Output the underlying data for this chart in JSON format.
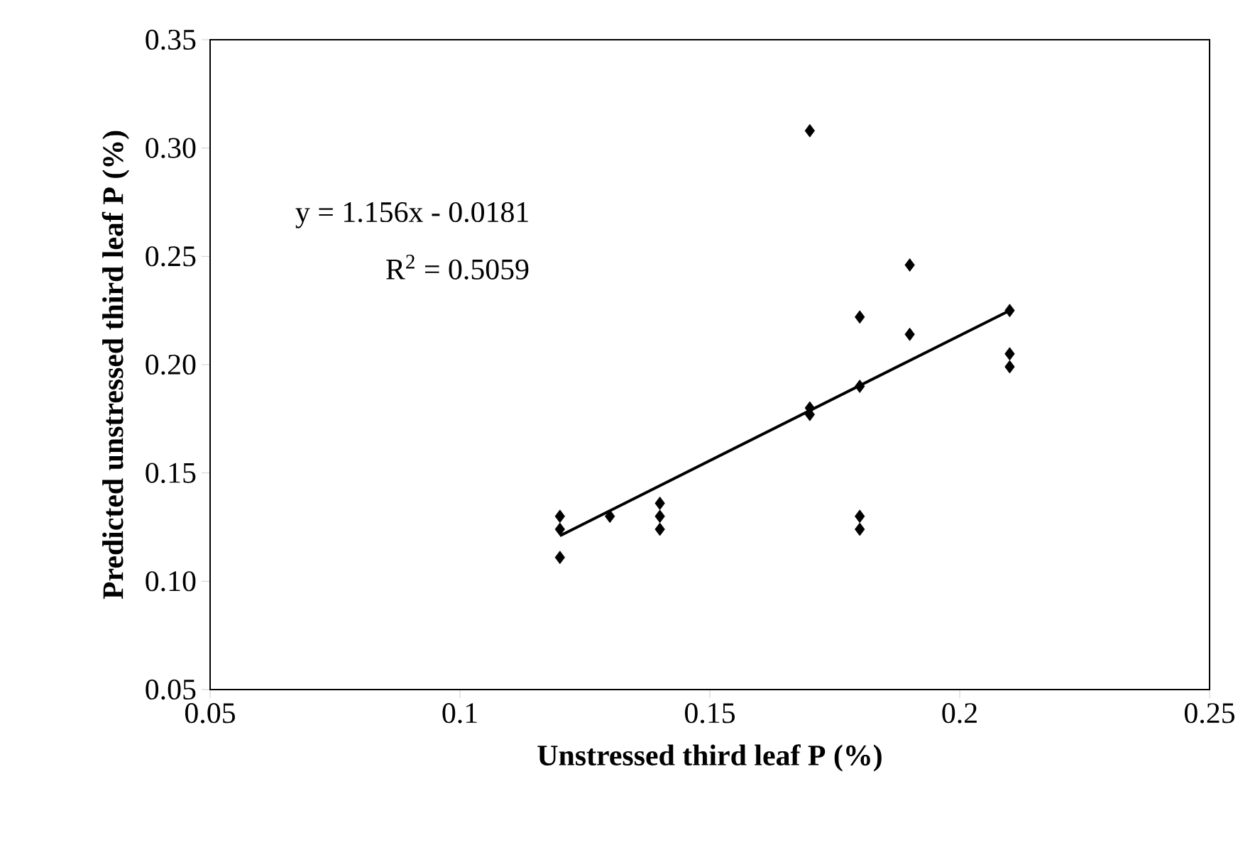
{
  "chart_data": {
    "type": "scatter",
    "xlabel": "Unstressed third leaf P (%)",
    "ylabel": "Predicted unstressed third leaf P (%)",
    "annotations": [
      "y = 1.156x - 0.0181",
      "R$^{2}$ = 0.5059"
    ],
    "xlim": [
      0.05,
      0.25
    ],
    "xticks": [
      0.05,
      0.1,
      0.15,
      0.2,
      0.25
    ],
    "ylim": [
      0.05,
      0.35
    ],
    "yticks": [
      {
        "value": 0.05,
        "label": "0.05"
      },
      {
        "value": 0.1,
        "label": "0.10"
      },
      0.15,
      {
        "value": 0.2,
        "label": "0.20"
      },
      0.25,
      {
        "value": 0.3,
        "label": "0.30"
      },
      0.35
    ],
    "grid": false,
    "series": [
      {
        "color": "#000000",
        "marker": "diamond",
        "x": [
          0.12,
          0.12,
          0.12,
          0.13,
          0.14,
          0.14,
          0.14,
          0.17,
          0.17,
          0.17,
          0.18,
          0.18,
          0.18,
          0.18,
          0.19,
          0.19,
          0.21,
          0.21,
          0.21
        ],
        "values": [
          0.13,
          0.124,
          0.111,
          0.13,
          0.136,
          0.13,
          0.124,
          0.308,
          0.18,
          0.177,
          0.222,
          0.19,
          0.13,
          0.124,
          0.246,
          0.214,
          0.225,
          0.205,
          0.199
        ]
      },
      {
        "type": "line",
        "color": "#000000",
        "marker": "none",
        "line_style": "solid",
        "x": [
          0.12,
          0.21
        ],
        "values": [
          0.121,
          0.225
        ]
      }
    ]
  }
}
